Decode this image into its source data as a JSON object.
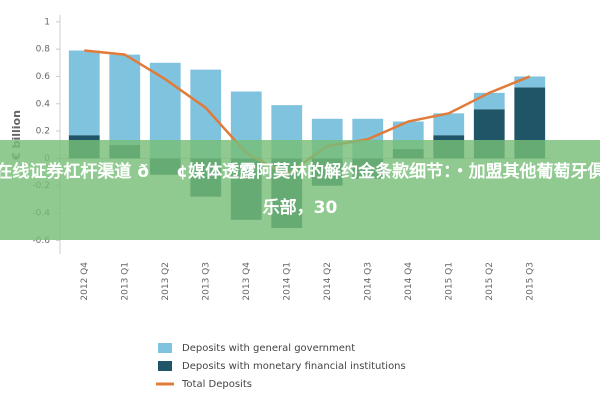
{
  "chart_data": {
    "type": "bar",
    "y_label": "€ billion",
    "categories": [
      "2012 Q4",
      "2013 Q1",
      "2013 Q2",
      "2013 Q3",
      "2013 Q4",
      "2014 Q1",
      "2014 Q2",
      "2014 Q3",
      "2014 Q4",
      "2015 Q1",
      "2015 Q2",
      "2015 Q3"
    ],
    "series": [
      {
        "name": "Deposits with general government",
        "color": "#80c3df",
        "type": "bar",
        "values": [
          0.62,
          0.66,
          0.7,
          0.65,
          0.49,
          0.39,
          0.29,
          0.29,
          0.2,
          0.16,
          0.12,
          0.08
        ]
      },
      {
        "name": "Deposits with monetary financial institutions",
        "color": "#1f5566",
        "type": "bar",
        "values": [
          0.17,
          0.1,
          -0.12,
          -0.28,
          -0.45,
          -0.51,
          -0.2,
          -0.15,
          0.07,
          0.17,
          0.36,
          0.52
        ]
      },
      {
        "name": "Total Deposits",
        "color": "#e07b39",
        "type": "line",
        "values": [
          0.79,
          0.76,
          0.58,
          0.37,
          0.04,
          -0.12,
          0.09,
          0.14,
          0.27,
          0.33,
          0.48,
          0.6
        ]
      }
    ],
    "ylim": [
      -0.7,
      1.05
    ],
    "yticks": [
      -0.6,
      -0.4,
      -0.2,
      0,
      0.2,
      0.4,
      0.6,
      0.8,
      1
    ]
  },
  "banner": {
    "text": "在线证券杠杆渠道 ð¢媒体透露阿莫林的解约金条款细节：・加盟其他葡萄牙俱乐部，30"
  }
}
